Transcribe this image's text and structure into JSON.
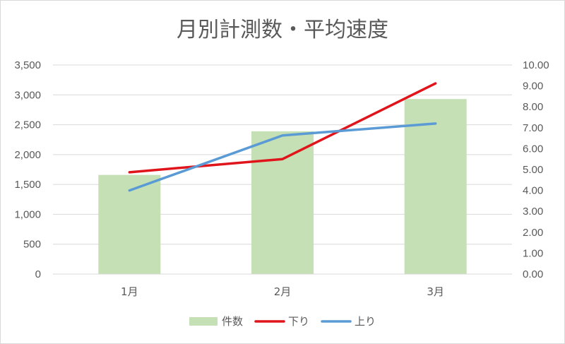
{
  "chart_data": {
    "type": "bar",
    "title": "月別計測数・平均速度",
    "categories": [
      "1月",
      "2月",
      "3月"
    ],
    "series": [
      {
        "name": "件数",
        "type": "bar",
        "axis": "left",
        "color": "#c5e0b4",
        "values": [
          1660,
          2390,
          2930
        ]
      },
      {
        "name": "下り",
        "type": "line",
        "axis": "right",
        "color": "#e0151b",
        "values": [
          4.87,
          5.5,
          9.12
        ]
      },
      {
        "name": "上り",
        "type": "line",
        "axis": "right",
        "color": "#5b9bd5",
        "values": [
          4.0,
          6.63,
          7.2
        ]
      }
    ],
    "y_left": {
      "ylim": [
        0,
        3500
      ],
      "ticks": [
        "0",
        "500",
        "1,000",
        "1,500",
        "2,000",
        "2,500",
        "3,000",
        "3,500"
      ]
    },
    "y_right": {
      "ylim": [
        0,
        10
      ],
      "ticks": [
        "0.00",
        "1.00",
        "2.00",
        "3.00",
        "4.00",
        "5.00",
        "6.00",
        "7.00",
        "8.00",
        "9.00",
        "10.00"
      ]
    },
    "grid": true,
    "legend_position": "bottom"
  }
}
